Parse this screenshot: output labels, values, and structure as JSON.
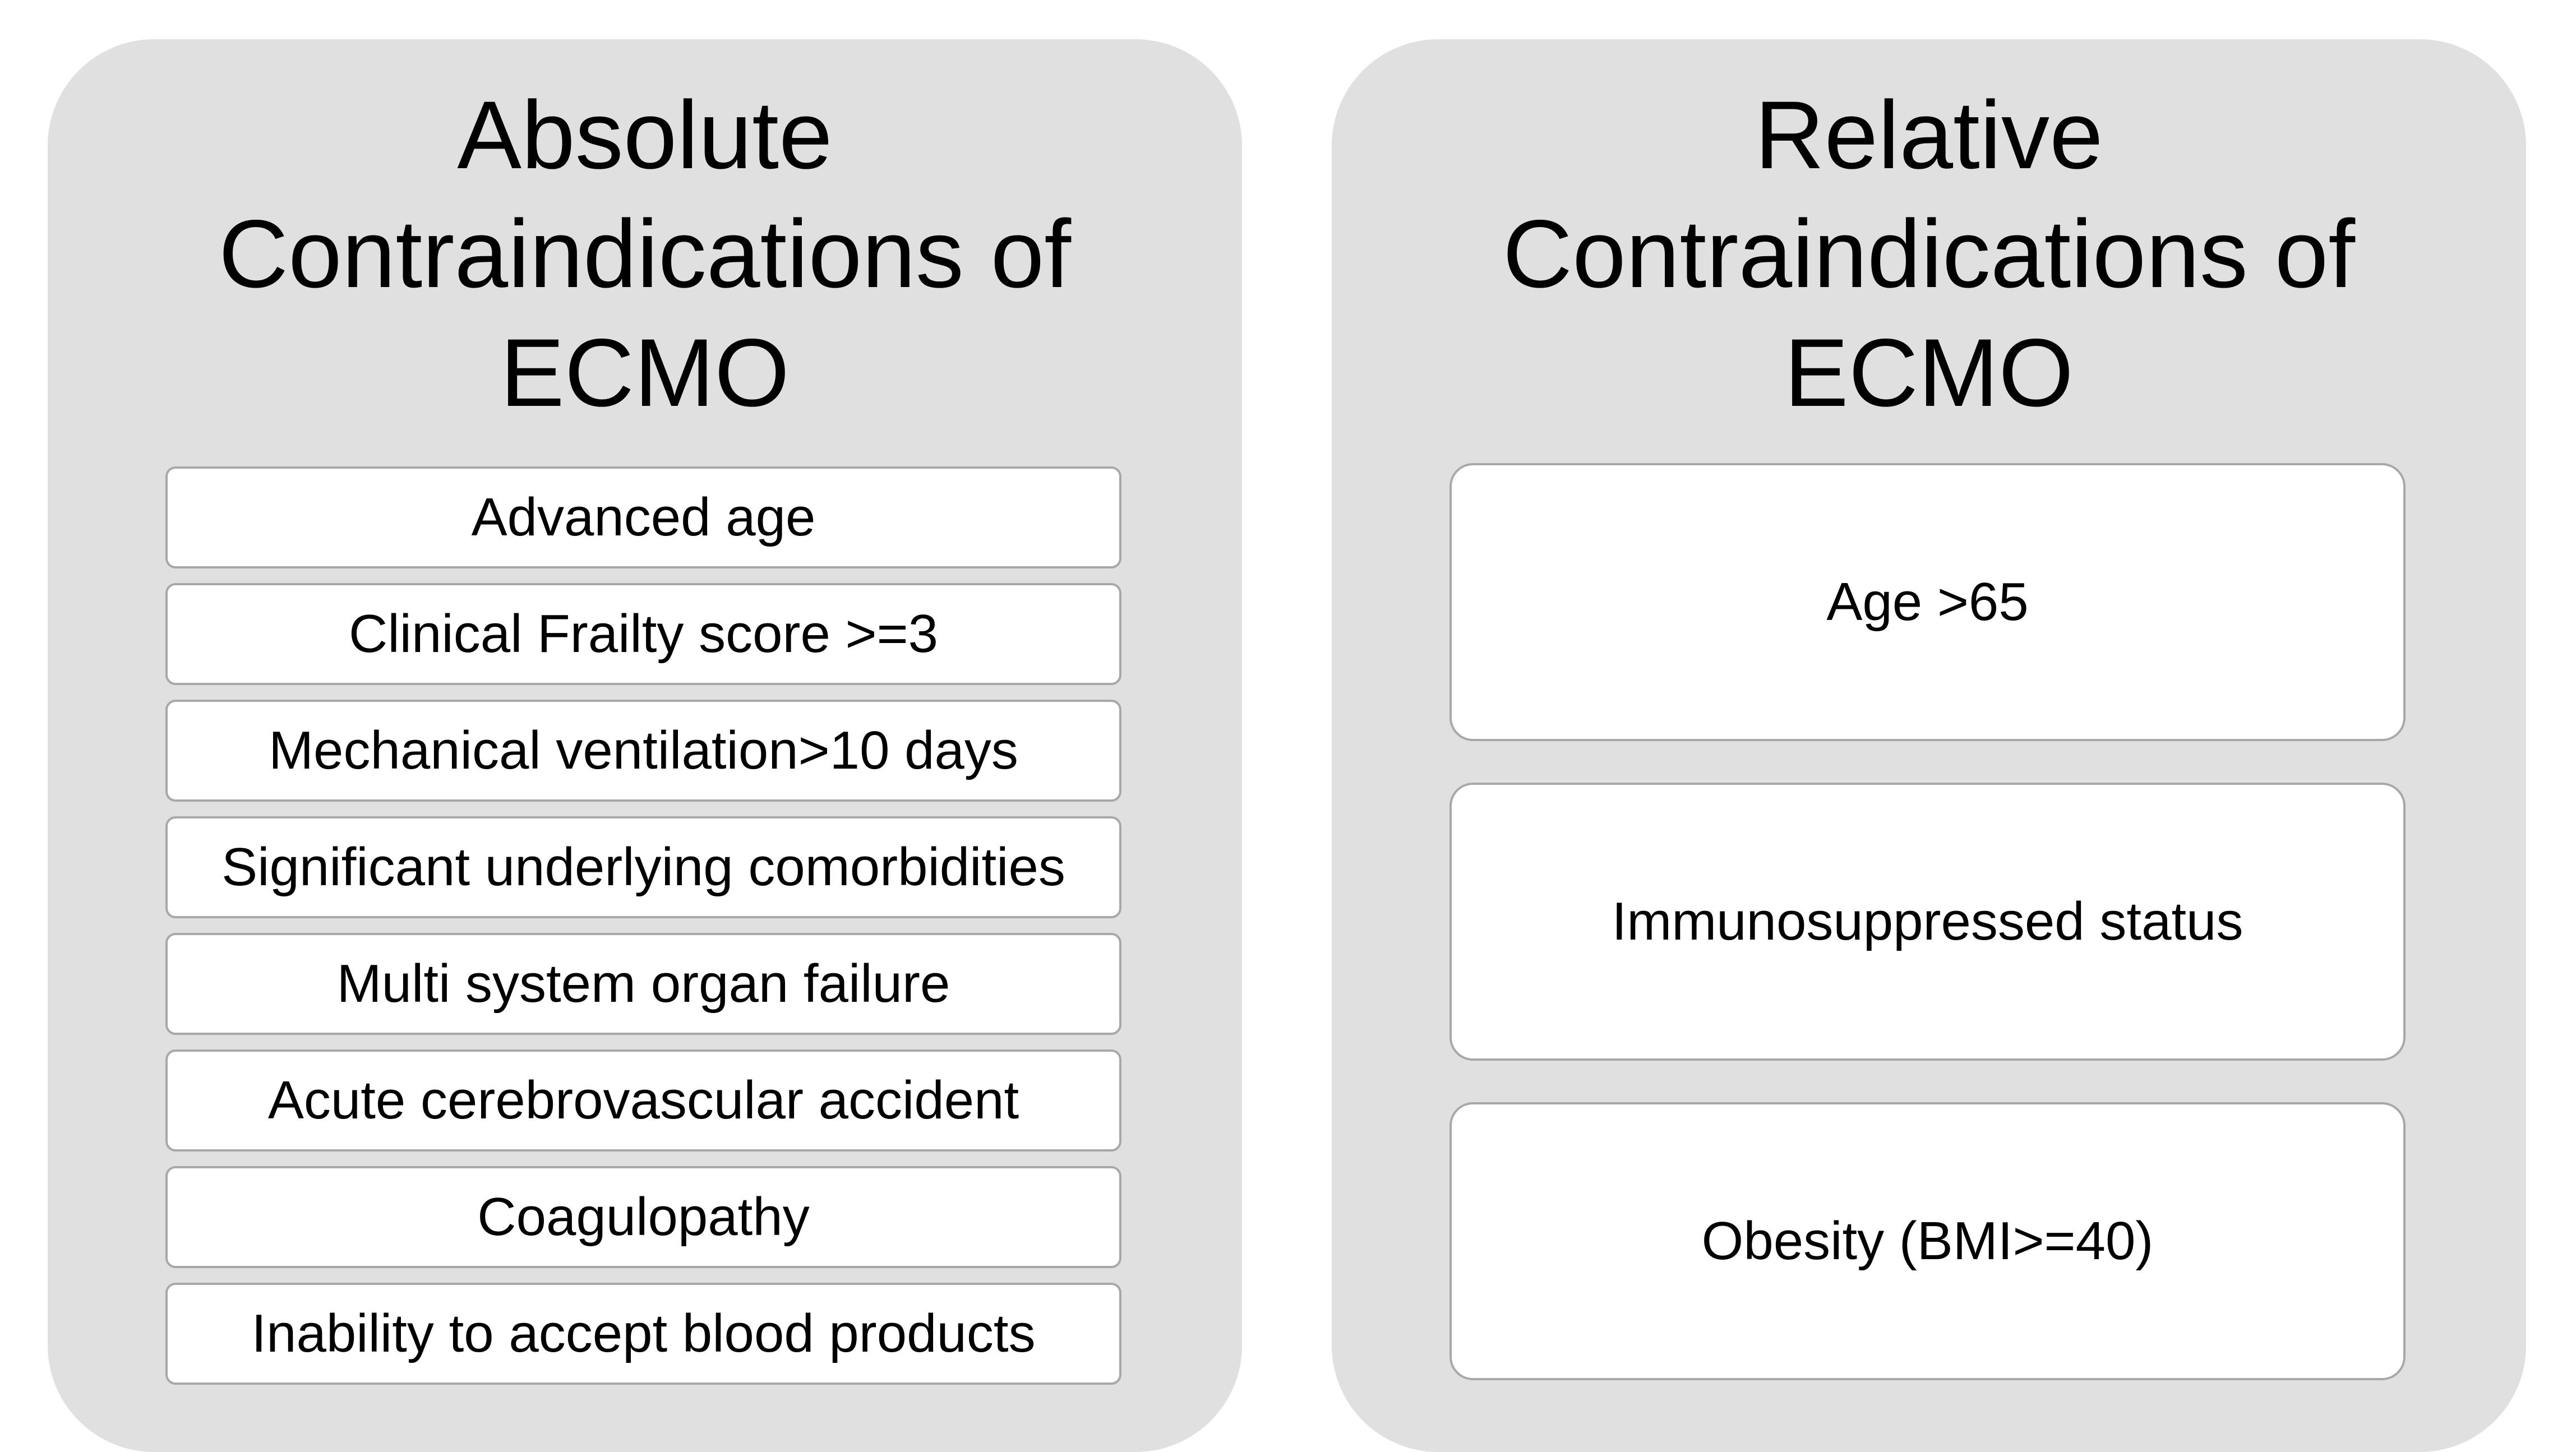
{
  "absolute": {
    "title_lines": [
      "Absolute",
      "Contraindications of",
      "ECMO"
    ],
    "items": [
      "Advanced age",
      "Clinical Frailty score >=3",
      "Mechanical ventilation>10 days",
      "Significant underlying comorbidities",
      "Multi system organ failure",
      "Acute cerebrovascular accident",
      "Coagulopathy",
      "Inability to accept blood products"
    ]
  },
  "relative": {
    "title_lines": [
      "Relative",
      "Contraindications of",
      "ECMO"
    ],
    "items": [
      "Age >65",
      "Immunosuppressed status",
      "Obesity (BMI>=40)"
    ]
  },
  "colors": {
    "panel_background": "#e0e0e0",
    "box_background": "#ffffff",
    "box_border": "#a8a8a8",
    "text": "#000000"
  }
}
